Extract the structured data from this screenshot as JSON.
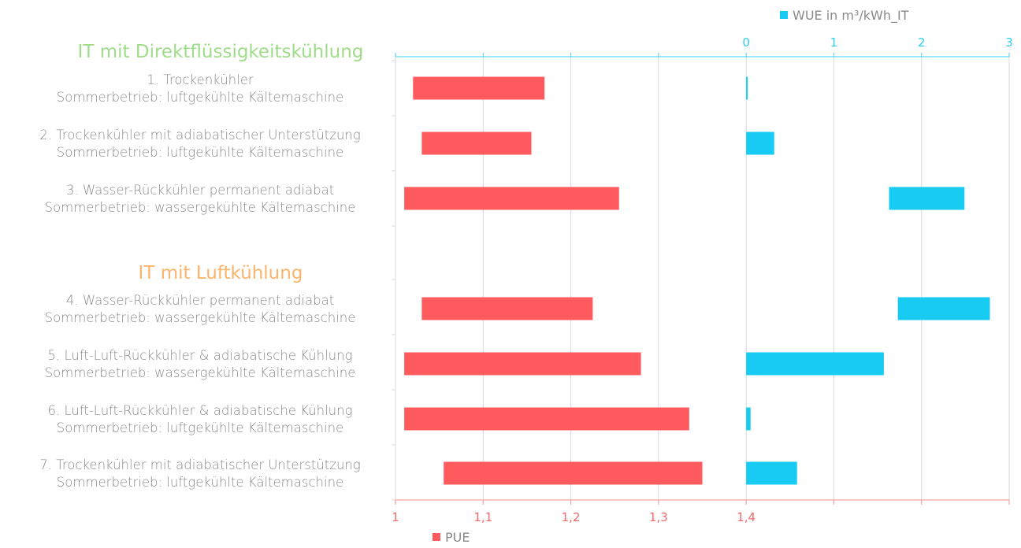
{
  "colors": {
    "pue": "#ff5b5f",
    "wue": "#17cbf2",
    "pue_axis": "#f5a2a2",
    "wue_axis": "#5fd7f4",
    "grid": "#d9d9d9",
    "group_direct": "#9fdc8a",
    "group_air": "#fbb46b",
    "label": "#8a8a8a"
  },
  "chart_data": {
    "type": "bar",
    "subtype": "floating-range-horizontal",
    "groups": [
      {
        "label": "IT mit Direktflüssigkeitskühlung",
        "color_key": "group_direct"
      },
      {
        "label": "IT mit Luftkühlung",
        "color_key": "group_air"
      }
    ],
    "categories": [
      {
        "line1": "1. Trockenkühler",
        "line2": "Sommerbetrieb: luftgekühlte Kältemaschine",
        "group": 0
      },
      {
        "line1": "2. Trockenkühler mit adiabatischer Unterstützung",
        "line2": "Sommerbetrieb: luftgekühlte Kältemaschine",
        "group": 0
      },
      {
        "line1": "3. Wasser-Rückkühler permanent adiabat",
        "line2": "Sommerbetrieb: wassergekühlte Kältemaschine",
        "group": 0
      },
      {
        "line1": "4. Wasser-Rückkühler permanent adiabat",
        "line2": "Sommerbetrieb: wassergekühlte Kältemaschine",
        "group": 1
      },
      {
        "line1": "5. Luft-Luft-Rückkühler & adiabatische Kühlung",
        "line2": "Sommerbetrieb: wassergekühlte Kältemaschine",
        "group": 1
      },
      {
        "line1": "6. Luft-Luft-Rückkühler & adiabatische Kühlung",
        "line2": "Sommerbetrieb: luftgekühlte Kältemaschine",
        "group": 1
      },
      {
        "line1": "7. Trockenkühler mit adiabatischer Unterstützung",
        "line2": "Sommerbetrieb: luftgekühlte Kältemaschine",
        "group": 1
      }
    ],
    "series": [
      {
        "name": "PUE",
        "axis": "bottom",
        "ranges": [
          [
            1.02,
            1.17
          ],
          [
            1.03,
            1.155
          ],
          [
            1.01,
            1.255
          ],
          [
            1.03,
            1.225
          ],
          [
            1.01,
            1.28
          ],
          [
            1.01,
            1.335
          ],
          [
            1.055,
            1.35
          ]
        ]
      },
      {
        "name": "WUE in m³/kWh_IT",
        "axis": "top",
        "ranges": [
          [
            0,
            0.01
          ],
          [
            0,
            0.32
          ],
          [
            1.63,
            2.49
          ],
          [
            1.73,
            2.78
          ],
          [
            0,
            1.57
          ],
          [
            0,
            0.05
          ],
          [
            0,
            0.58
          ]
        ]
      }
    ],
    "x_bottom": {
      "min": 1,
      "max": 1.7,
      "tick_values": [
        1,
        1.1,
        1.2,
        1.3,
        1.4,
        1.5,
        1.6,
        1.7
      ],
      "tick_labels": [
        "1",
        "1,1",
        "1,2",
        "1,3",
        "1,4",
        "",
        "",
        ""
      ]
    },
    "x_top": {
      "min": -4,
      "max": 3,
      "tick_values": [
        0,
        1,
        2,
        3
      ],
      "tick_labels": [
        "0",
        "1",
        "2",
        "3"
      ]
    },
    "grid": true,
    "legend": {
      "pue_label": "PUE",
      "wue_label": "WUE in m³/kWh_IT"
    }
  }
}
